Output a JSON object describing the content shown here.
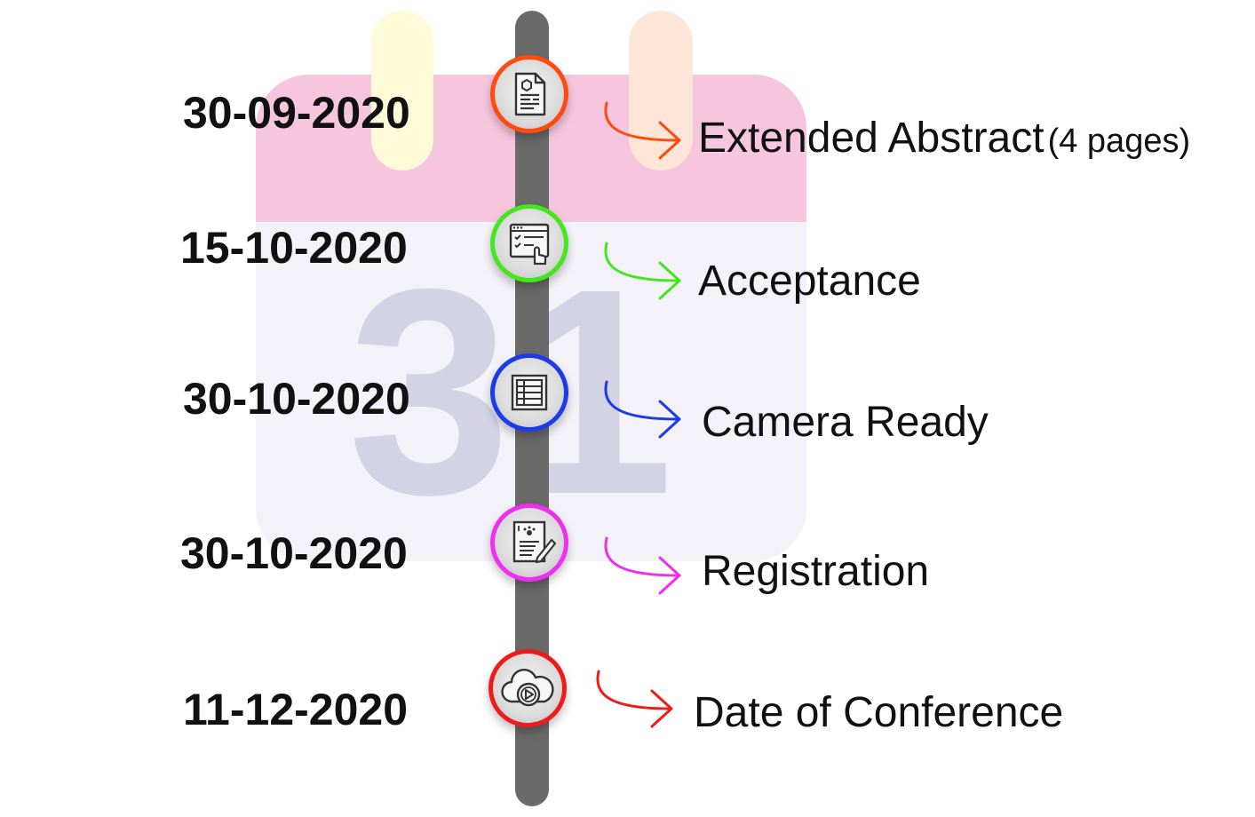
{
  "background": {
    "calendar_number": "31",
    "header_color": "#f6c6de",
    "body_color": "#f2f2f8",
    "number_color": "#d3d3e5",
    "ring_left_color": "#fffbd8",
    "ring_right_color": "#ffe6d8"
  },
  "track_color": "#6a6a6a",
  "milestones": [
    {
      "date": "30-09-2020",
      "label": "Extended Abstract",
      "note": "(4 pages)",
      "color": "#ff4a10",
      "icon": "document-icon"
    },
    {
      "date": "15-10-2020",
      "label": "Acceptance",
      "note": "",
      "color": "#44e61e",
      "icon": "checklist-click-icon"
    },
    {
      "date": "30-10-2020",
      "label": "Camera Ready",
      "note": "",
      "color": "#1b3be8",
      "icon": "table-grid-icon"
    },
    {
      "date": "30-10-2020",
      "label": "Registration",
      "note": "",
      "color": "#ee2ff0",
      "icon": "form-sign-icon"
    },
    {
      "date": "11-12-2020",
      "label": "Date of Conference",
      "note": "",
      "color": "#ee1b1b",
      "icon": "cloud-play-icon"
    }
  ]
}
